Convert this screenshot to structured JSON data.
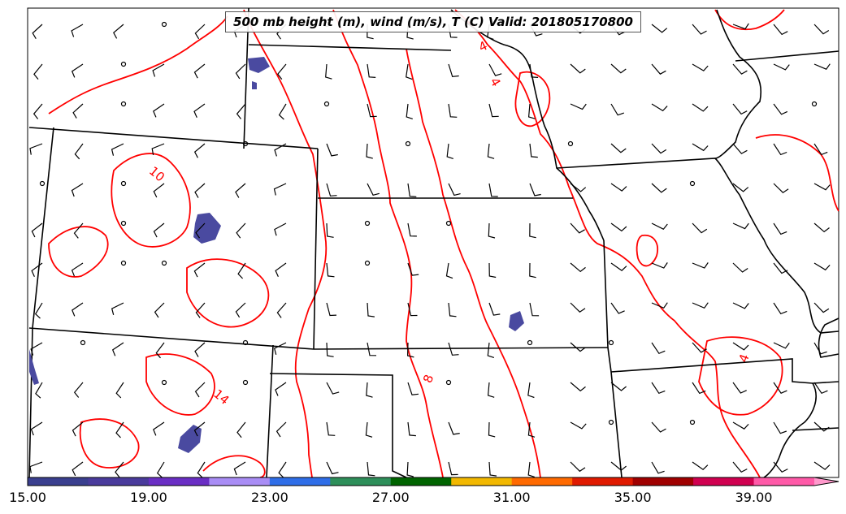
{
  "title": "500 mb height (m), wind (m/s), T (C) Valid: 201805170800",
  "contour_labels": [
    {
      "id": "c4a",
      "text": "4"
    },
    {
      "id": "c4b",
      "text": "4"
    },
    {
      "id": "c10",
      "text": "10"
    },
    {
      "id": "c8",
      "text": "8"
    },
    {
      "id": "c14",
      "text": "14"
    },
    {
      "id": "c4c",
      "text": "4"
    }
  ],
  "colorbar": {
    "colors": [
      "#3a3f8f",
      "#4a3b9c",
      "#6a2ec4",
      "#a98df5",
      "#2f6ee8",
      "#2e8f5a",
      "#006400",
      "#f2b800",
      "#ff6a00",
      "#e01a00",
      "#a00000",
      "#d00050",
      "#ff5aa8",
      "#ff99cc"
    ],
    "tick_labels": [
      "15.00",
      "19.00",
      "23.00",
      "27.00",
      "31.00",
      "35.00",
      "39.00"
    ]
  },
  "colors": {
    "contour": "#ff0000",
    "boundary": "#000000",
    "shaded": "#4a4aa0"
  }
}
